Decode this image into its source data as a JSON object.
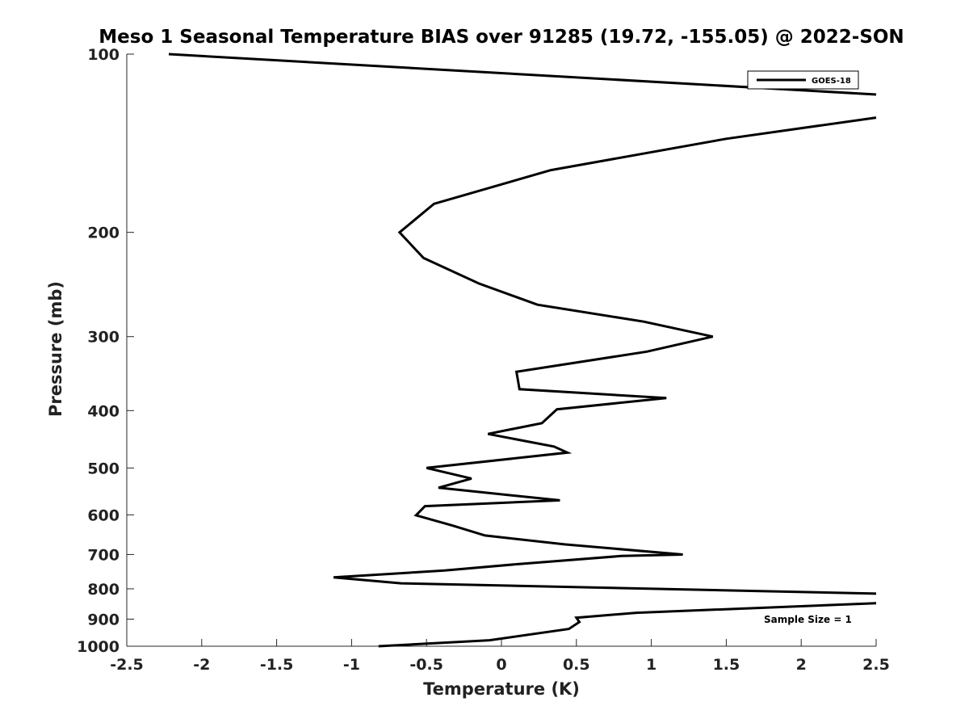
{
  "chart_data": {
    "type": "line",
    "title": "Meso 1 Seasonal Temperature BIAS over 91285 (19.72, -155.05) @ 2022-SON",
    "xlabel": "Temperature (K)",
    "ylabel": "Pressure (mb)",
    "xlim": [
      -2.5,
      2.5
    ],
    "ylim": [
      100,
      1000
    ],
    "y_scale": "log",
    "y_reversed": true,
    "x_ticks": [
      -2.5,
      -2,
      -1.5,
      -1,
      -0.5,
      0,
      0.5,
      1,
      1.5,
      2,
      2.5
    ],
    "x_tick_labels": [
      "-2.5",
      "-2",
      "-1.5",
      "-1",
      "-0.5",
      "0",
      "0.5",
      "1",
      "1.5",
      "2",
      "2.5"
    ],
    "y_ticks": [
      100,
      200,
      300,
      400,
      500,
      600,
      700,
      800,
      900,
      1000
    ],
    "y_tick_labels": [
      "100",
      "200",
      "300",
      "400",
      "500",
      "600",
      "700",
      "800",
      "900",
      "1000"
    ],
    "legend_position": "top-right",
    "annotation": "Sample Size = 1",
    "series": [
      {
        "name": "GOES-18",
        "color": "#000000",
        "segments": [
          {
            "x": [
              -2.22,
              2.5
            ],
            "y": [
              100,
              117
            ]
          },
          {
            "x": [
              2.5,
              1.5,
              0.33,
              -0.45,
              -0.68,
              -0.52,
              -0.15,
              0.24,
              0.95,
              1.41,
              0.97,
              0.1,
              0.12,
              1.1,
              0.37,
              0.27,
              -0.09,
              0.35,
              0.44,
              -0.5,
              -0.2,
              -0.42,
              0.39,
              -0.51,
              -0.57,
              -0.33,
              -0.11,
              0.42,
              1.21,
              0.8,
              0.1,
              -0.38,
              -1.12,
              -0.67,
              2.5
            ],
            "y": [
              128,
              139,
              157,
              179,
              200,
              221,
              244,
              265,
              283,
              300,
              318,
              344,
              368,
              381,
              398,
              420,
              438,
              460,
              471,
              500,
              521,
              540,
              567,
              580,
              601,
              625,
              650,
              673,
              700,
              704,
              727,
              745,
              765,
              783,
              815
            ]
          },
          {
            "x": [
              2.5,
              0.9,
              0.5,
              0.52,
              0.45,
              -0.08,
              -0.82
            ],
            "y": [
              846,
              878,
              895,
              910,
              935,
              977,
              1000
            ]
          }
        ]
      }
    ]
  }
}
